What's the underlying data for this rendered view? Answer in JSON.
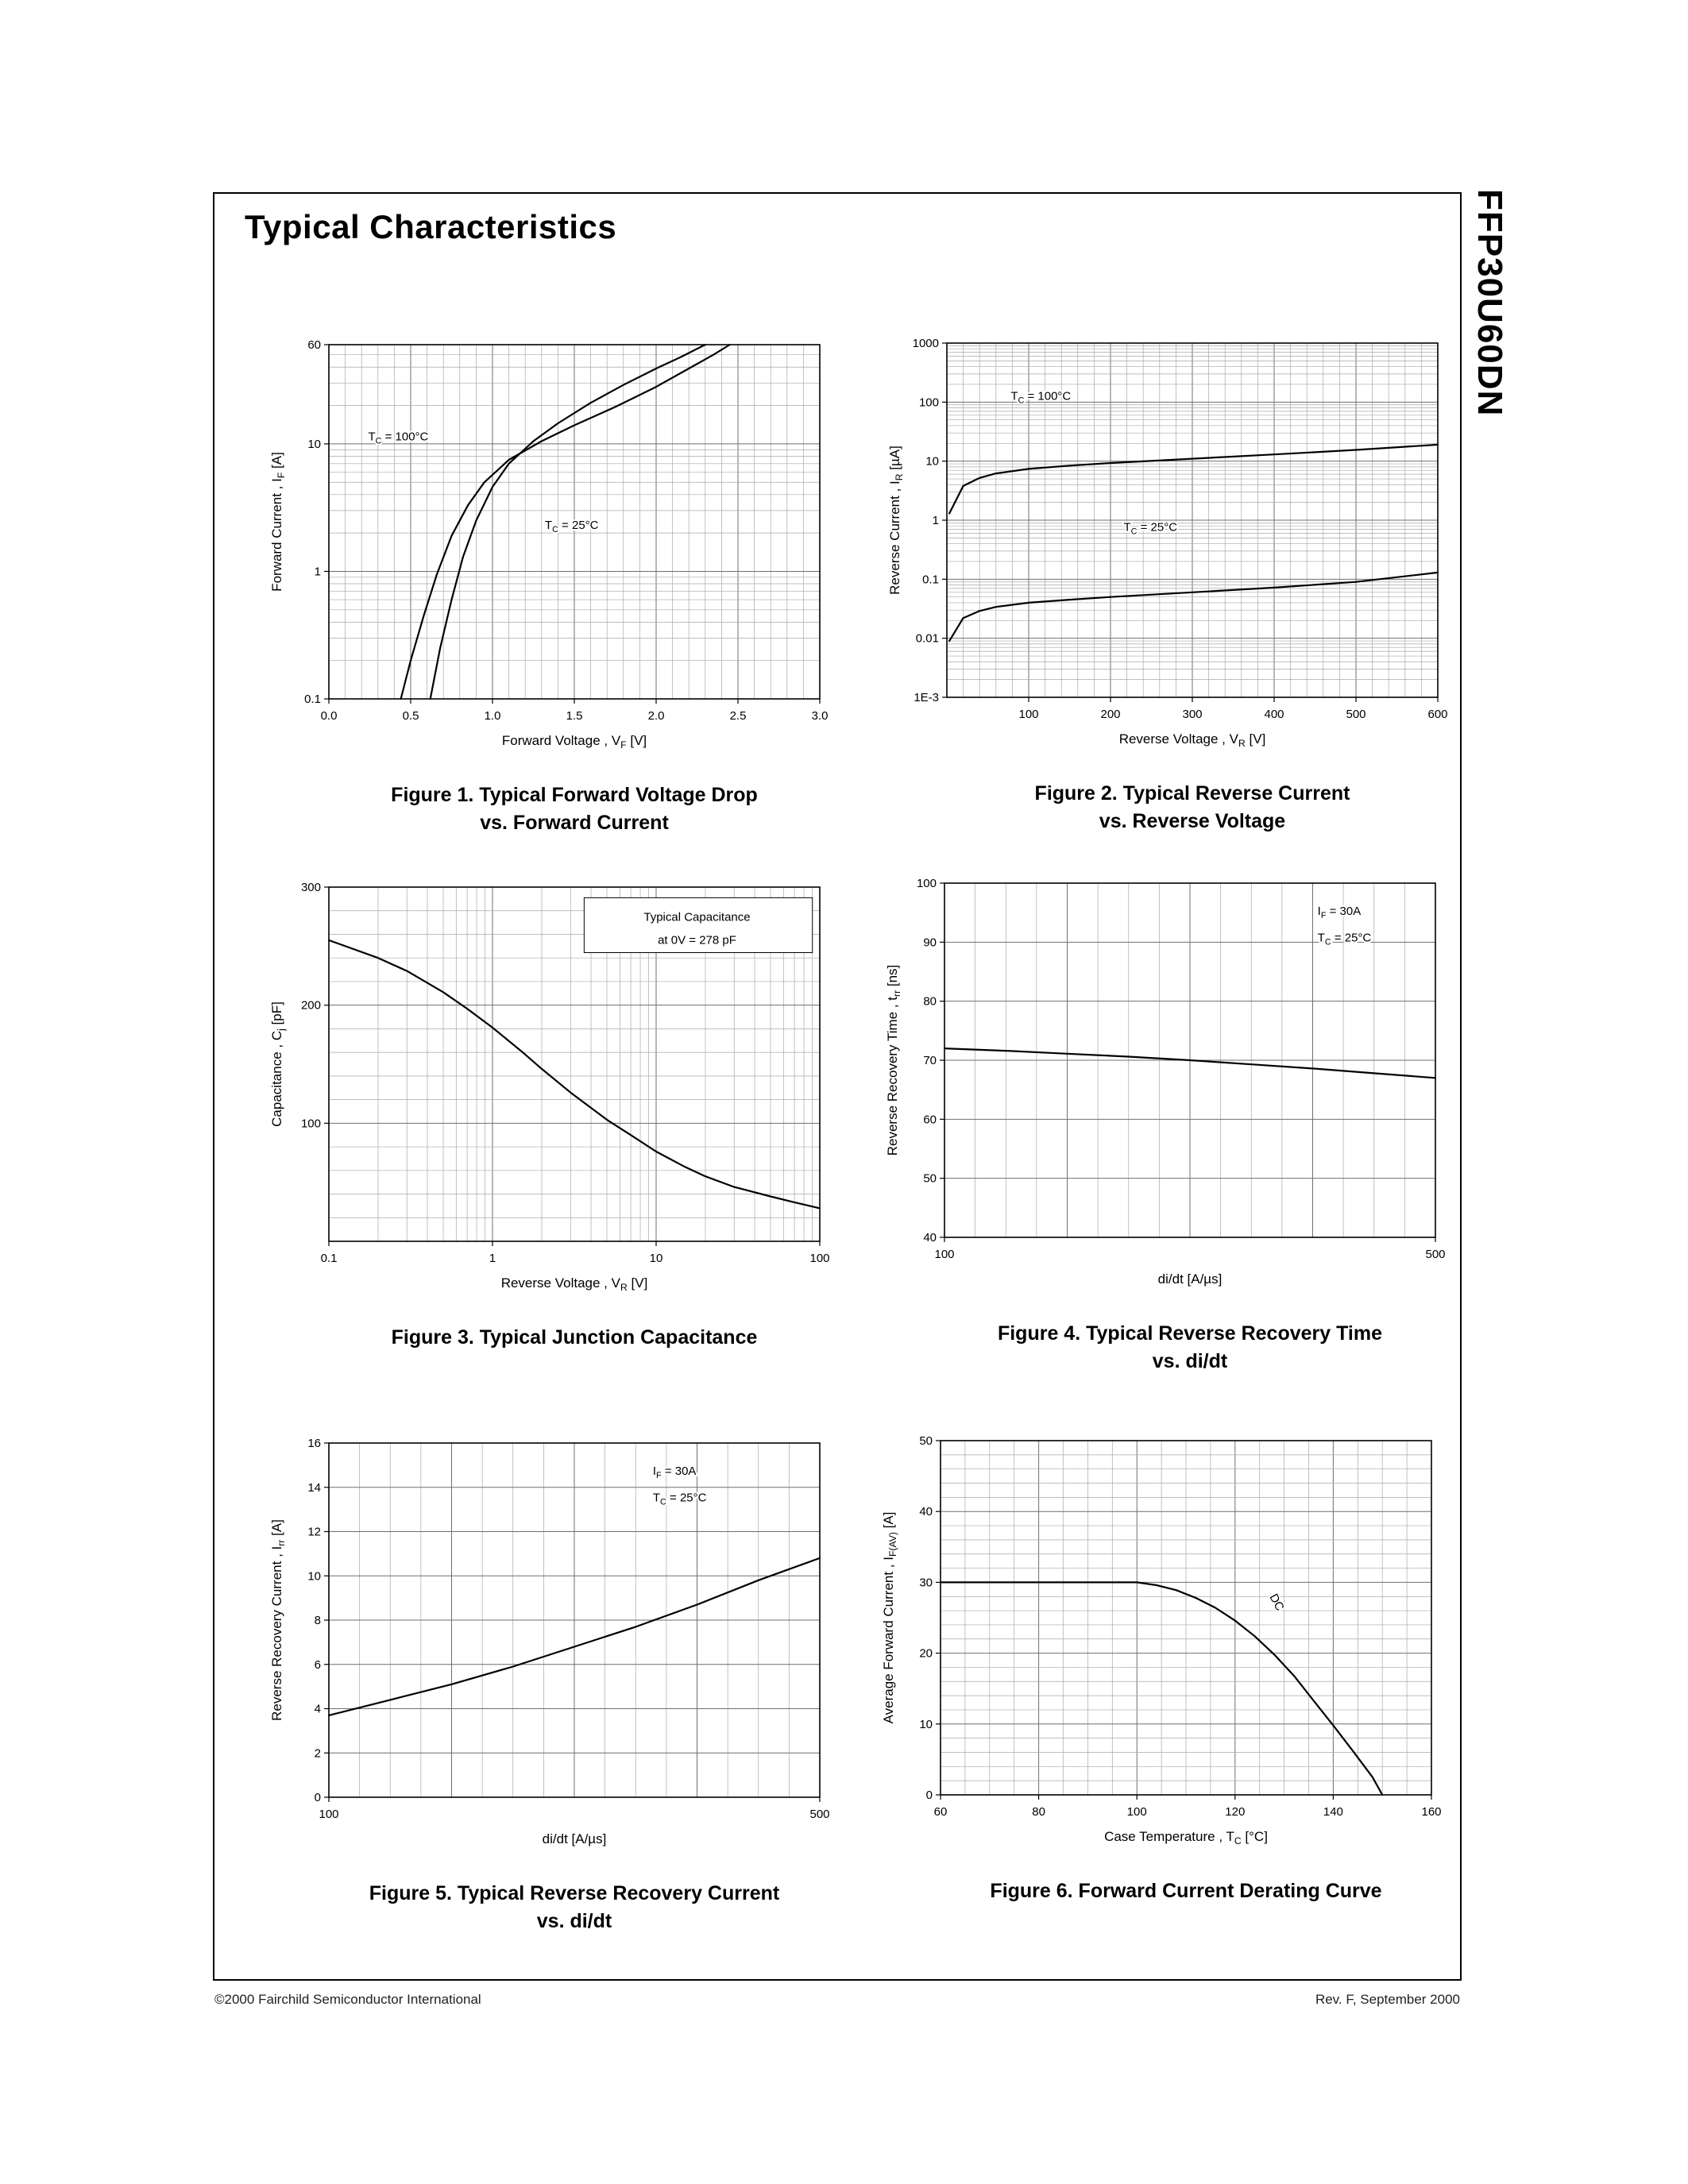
{
  "page": {
    "title": "Typical Characteristics",
    "part_number": "FFP30U60DN",
    "footer_left": "©2000 Fairchild Semiconductor International",
    "footer_right": "Rev. F, September 2000"
  },
  "chart_data": [
    {
      "id": "figure-1",
      "type": "line",
      "caption": {
        "line1": "Figure 1. Typical Forward Voltage Drop",
        "line2": "vs. Forward Current"
      },
      "x_axis": {
        "label": "Forward Voltage , V~F~ [V]",
        "scale": "linear",
        "min": 0,
        "max": 3,
        "minor_step": 0.1,
        "major_step": 0.5,
        "ticks": [
          0,
          0.5,
          1,
          1.5,
          2,
          2.5,
          3
        ],
        "tick_labels": [
          "0.0",
          "0.5",
          "1.0",
          "1.5",
          "2.0",
          "2.5",
          "3.0"
        ]
      },
      "y_axis": {
        "label": "Forward Current , I~F~ [A]",
        "scale": "log",
        "min": 0.1,
        "max": 60,
        "ticks": [
          0.1,
          1,
          10,
          60
        ],
        "tick_labels": [
          "0.1",
          "1",
          "10",
          "60"
        ]
      },
      "series": [
        {
          "name": "TC = 100°C",
          "points": [
            [
              0.44,
              0.1
            ],
            [
              0.5,
              0.2
            ],
            [
              0.58,
              0.45
            ],
            [
              0.66,
              0.95
            ],
            [
              0.75,
              1.9
            ],
            [
              0.85,
              3.3
            ],
            [
              0.95,
              5.0
            ],
            [
              1.1,
              7.5
            ],
            [
              1.3,
              10.5
            ],
            [
              1.5,
              14
            ],
            [
              1.75,
              19.5
            ],
            [
              2.0,
              28
            ],
            [
              2.2,
              39
            ],
            [
              2.35,
              50
            ],
            [
              2.45,
              60
            ]
          ]
        },
        {
          "name": "TC = 25°C",
          "points": [
            [
              0.62,
              0.1
            ],
            [
              0.68,
              0.25
            ],
            [
              0.75,
              0.6
            ],
            [
              0.82,
              1.3
            ],
            [
              0.9,
              2.5
            ],
            [
              1.0,
              4.6
            ],
            [
              1.1,
              7.0
            ],
            [
              1.25,
              10.5
            ],
            [
              1.4,
              14.5
            ],
            [
              1.6,
              21
            ],
            [
              1.8,
              29
            ],
            [
              2.0,
              39
            ],
            [
              2.15,
              48
            ],
            [
              2.3,
              60
            ]
          ]
        }
      ],
      "annotations": [
        {
          "text": "T~C~ = 100°C",
          "fx": 0.08,
          "fy": 0.27
        },
        {
          "text": "T~C~ = 25°C",
          "fx": 0.44,
          "fy": 0.52
        }
      ]
    },
    {
      "id": "figure-2",
      "type": "line",
      "caption": {
        "line1": "Figure 2. Typical Reverse Current",
        "line2": "vs. Reverse Voltage"
      },
      "x_axis": {
        "label": "Reverse Voltage , V~R~ [V]",
        "scale": "linear",
        "min": 0,
        "max": 600,
        "minor_step": 20,
        "major_step": 100,
        "ticks": [
          100,
          200,
          300,
          400,
          500,
          600
        ],
        "tick_labels": [
          "100",
          "200",
          "300",
          "400",
          "500",
          "600"
        ]
      },
      "y_axis": {
        "label": "Reverse Current , I~R~ [µA]",
        "scale": "log",
        "min": 0.001,
        "max": 1000,
        "ticks": [
          0.001,
          0.01,
          0.1,
          1,
          10,
          100,
          1000
        ],
        "tick_labels": [
          "1E-3",
          "0.01",
          "0.1",
          "1",
          "10",
          "100",
          "1000"
        ]
      },
      "series": [
        {
          "name": "TC = 100°C",
          "points": [
            [
              3,
              1.3
            ],
            [
              20,
              3.8
            ],
            [
              40,
              5.2
            ],
            [
              60,
              6.2
            ],
            [
              100,
              7.4
            ],
            [
              150,
              8.4
            ],
            [
              200,
              9.3
            ],
            [
              300,
              11
            ],
            [
              400,
              13
            ],
            [
              500,
              15.5
            ],
            [
              600,
              19
            ]
          ]
        },
        {
          "name": "TC = 25°C",
          "points": [
            [
              3,
              0.009
            ],
            [
              20,
              0.022
            ],
            [
              40,
              0.029
            ],
            [
              60,
              0.034
            ],
            [
              100,
              0.04
            ],
            [
              150,
              0.045
            ],
            [
              200,
              0.05
            ],
            [
              300,
              0.06
            ],
            [
              400,
              0.072
            ],
            [
              500,
              0.09
            ],
            [
              600,
              0.13
            ]
          ]
        }
      ],
      "annotations": [
        {
          "text": "T~C~ = 100°C",
          "fx": 0.13,
          "fy": 0.16
        },
        {
          "text": "T~C~ = 25°C",
          "fx": 0.36,
          "fy": 0.53
        }
      ]
    },
    {
      "id": "figure-3",
      "type": "line",
      "caption": {
        "line1": "Figure 3. Typical Junction Capacitance",
        "line2": ""
      },
      "x_axis": {
        "label": "Reverse Voltage , V~R~ [V]",
        "scale": "log",
        "min": 0.1,
        "max": 100,
        "ticks": [
          0.1,
          1,
          10,
          100
        ],
        "tick_labels": [
          "0.1",
          "1",
          "10",
          "100"
        ]
      },
      "y_axis": {
        "label": "Capacitance , C~j~ [pF]",
        "scale": "linear",
        "min": 0,
        "max": 300,
        "minor_step": 20,
        "major_step": 100,
        "ticks": [
          100,
          200,
          300
        ],
        "tick_labels": [
          "100",
          "200",
          "300"
        ]
      },
      "series": [
        {
          "name": "Cj",
          "points": [
            [
              0.1,
              255
            ],
            [
              0.2,
              240
            ],
            [
              0.3,
              229
            ],
            [
              0.5,
              211
            ],
            [
              0.7,
              197
            ],
            [
              1,
              181
            ],
            [
              1.5,
              161
            ],
            [
              2,
              146
            ],
            [
              3,
              126
            ],
            [
              5,
              103
            ],
            [
              7,
              90
            ],
            [
              10,
              76
            ],
            [
              15,
              63
            ],
            [
              20,
              55
            ],
            [
              30,
              46
            ],
            [
              50,
              38
            ],
            [
              70,
              33
            ],
            [
              100,
              28
            ]
          ]
        }
      ],
      "annotations": [
        {
          "box": [
            0.52,
            0.03,
            0.985,
            0.185
          ]
        },
        {
          "text": "Typical Capacitance",
          "fx": 0.75,
          "fy": 0.095,
          "anchor": "middle"
        },
        {
          "text": "at  0V = 278 pF",
          "fx": 0.75,
          "fy": 0.16,
          "anchor": "middle"
        }
      ]
    },
    {
      "id": "figure-4",
      "type": "line",
      "caption": {
        "line1": "Figure 4. Typical Reverse Recovery Time",
        "line2": "vs. di/dt"
      },
      "x_axis": {
        "label": "di/dt [A/µs]",
        "scale": "linear",
        "min": 100,
        "max": 500,
        "minor_step": 25,
        "major_step": 100,
        "ticks": [
          100,
          500
        ],
        "tick_labels": [
          "100",
          "500"
        ]
      },
      "y_axis": {
        "label": "Reverse Recovery Time , t~rr~ [ns]",
        "scale": "linear",
        "min": 40,
        "max": 100,
        "minor_step": 10,
        "major_step": 10,
        "ticks": [
          40,
          50,
          60,
          70,
          80,
          90,
          100
        ],
        "tick_labels": [
          "40",
          "50",
          "60",
          "70",
          "80",
          "90",
          "100"
        ]
      },
      "series": [
        {
          "name": "trr",
          "points": [
            [
              100,
              72
            ],
            [
              150,
              71.6
            ],
            [
              200,
              71.1
            ],
            [
              250,
              70.6
            ],
            [
              300,
              70
            ],
            [
              350,
              69.3
            ],
            [
              400,
              68.6
            ],
            [
              450,
              67.8
            ],
            [
              500,
              67
            ]
          ]
        }
      ],
      "annotations": [
        {
          "text": "I~F~ = 30A",
          "fx": 0.76,
          "fy": 0.09
        },
        {
          "text": "T~C~ = 25°C",
          "fx": 0.76,
          "fy": 0.165
        }
      ]
    },
    {
      "id": "figure-5",
      "type": "line",
      "caption": {
        "line1": "Figure 5. Typical Reverse Recovery Current",
        "line2": "vs. di/dt"
      },
      "x_axis": {
        "label": "di/dt [A/µs]",
        "scale": "linear",
        "min": 100,
        "max": 500,
        "minor_step": 25,
        "major_step": 100,
        "ticks": [
          100,
          500
        ],
        "tick_labels": [
          "100",
          "500"
        ]
      },
      "y_axis": {
        "label": "Reverse Recovery Current , I~rr~ [A]",
        "scale": "linear",
        "min": 0,
        "max": 16,
        "minor_step": 2,
        "major_step": 2,
        "ticks": [
          0,
          2,
          4,
          6,
          8,
          10,
          12,
          14,
          16
        ],
        "tick_labels": [
          "0",
          "2",
          "4",
          "6",
          "8",
          "10",
          "12",
          "14",
          "16"
        ]
      },
      "series": [
        {
          "name": "Irr",
          "points": [
            [
              100,
              3.7
            ],
            [
              150,
              4.4
            ],
            [
              200,
              5.1
            ],
            [
              250,
              5.9
            ],
            [
              300,
              6.8
            ],
            [
              350,
              7.7
            ],
            [
              400,
              8.7
            ],
            [
              450,
              9.8
            ],
            [
              500,
              10.8
            ]
          ]
        }
      ],
      "annotations": [
        {
          "text": "I~F~ = 30A",
          "fx": 0.66,
          "fy": 0.09
        },
        {
          "text": "T~C~ = 25°C",
          "fx": 0.66,
          "fy": 0.165
        }
      ]
    },
    {
      "id": "figure-6",
      "type": "line",
      "caption": {
        "line1": "Figure 6. Forward Current Derating Curve",
        "line2": ""
      },
      "x_axis": {
        "label": "Case  Temperature , T~C~ [°C]",
        "scale": "linear",
        "min": 60,
        "max": 160,
        "minor_step": 5,
        "major_step": 20,
        "ticks": [
          60,
          80,
          100,
          120,
          140,
          160
        ],
        "tick_labels": [
          "60",
          "80",
          "100",
          "120",
          "140",
          "160"
        ]
      },
      "y_axis": {
        "label": "Average  Forward  Current ,  I~F(AV)~ [A]",
        "scale": "linear",
        "min": 0,
        "max": 50,
        "minor_step": 2,
        "major_step": 10,
        "ticks": [
          0,
          10,
          20,
          30,
          40,
          50
        ],
        "tick_labels": [
          "0",
          "10",
          "20",
          "30",
          "40",
          "50"
        ]
      },
      "series": [
        {
          "name": "DC",
          "points": [
            [
              60,
              30
            ],
            [
              100,
              30
            ],
            [
              104,
              29.6
            ],
            [
              108,
              28.9
            ],
            [
              112,
              27.8
            ],
            [
              116,
              26.4
            ],
            [
              120,
              24.6
            ],
            [
              124,
              22.4
            ],
            [
              128,
              19.8
            ],
            [
              132,
              16.8
            ],
            [
              136,
              13.3
            ],
            [
              140,
              9.8
            ],
            [
              144,
              6.2
            ],
            [
              148,
              2.5
            ],
            [
              150,
              0
            ]
          ]
        }
      ],
      "annotations": [
        {
          "text": "DC",
          "fx": 0.67,
          "fy": 0.44,
          "rotate": 62
        }
      ]
    }
  ]
}
